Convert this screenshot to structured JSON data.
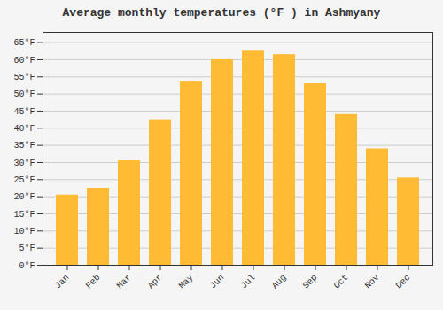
{
  "chart_data": {
    "type": "bar",
    "title": "Average monthly temperatures (°F ) in Ashmyany",
    "categories": [
      "Jan",
      "Feb",
      "Mar",
      "Apr",
      "May",
      "Jun",
      "Jul",
      "Aug",
      "Sep",
      "Oct",
      "Nov",
      "Dec"
    ],
    "values": [
      20.5,
      22.5,
      30.5,
      42.5,
      53.5,
      60.0,
      62.5,
      61.5,
      53.0,
      44.0,
      34.0,
      25.5
    ],
    "color": "#FFBB33",
    "ylim": [
      0,
      68
    ],
    "yticks": [
      {
        "value": 0,
        "label": "0°F"
      },
      {
        "value": 5,
        "label": "5°F"
      },
      {
        "value": 10,
        "label": "10°F"
      },
      {
        "value": 15,
        "label": "15°F"
      },
      {
        "value": 20,
        "label": "20°F"
      },
      {
        "value": 25,
        "label": "25°F"
      },
      {
        "value": 30,
        "label": "30°F"
      },
      {
        "value": 35,
        "label": "35°F"
      },
      {
        "value": 40,
        "label": "40°F"
      },
      {
        "value": 45,
        "label": "45°F"
      },
      {
        "value": 50,
        "label": "50°F"
      },
      {
        "value": 55,
        "label": "55°F"
      },
      {
        "value": 60,
        "label": "60°F"
      },
      {
        "value": 65,
        "label": "65°F"
      }
    ],
    "grid": true
  }
}
